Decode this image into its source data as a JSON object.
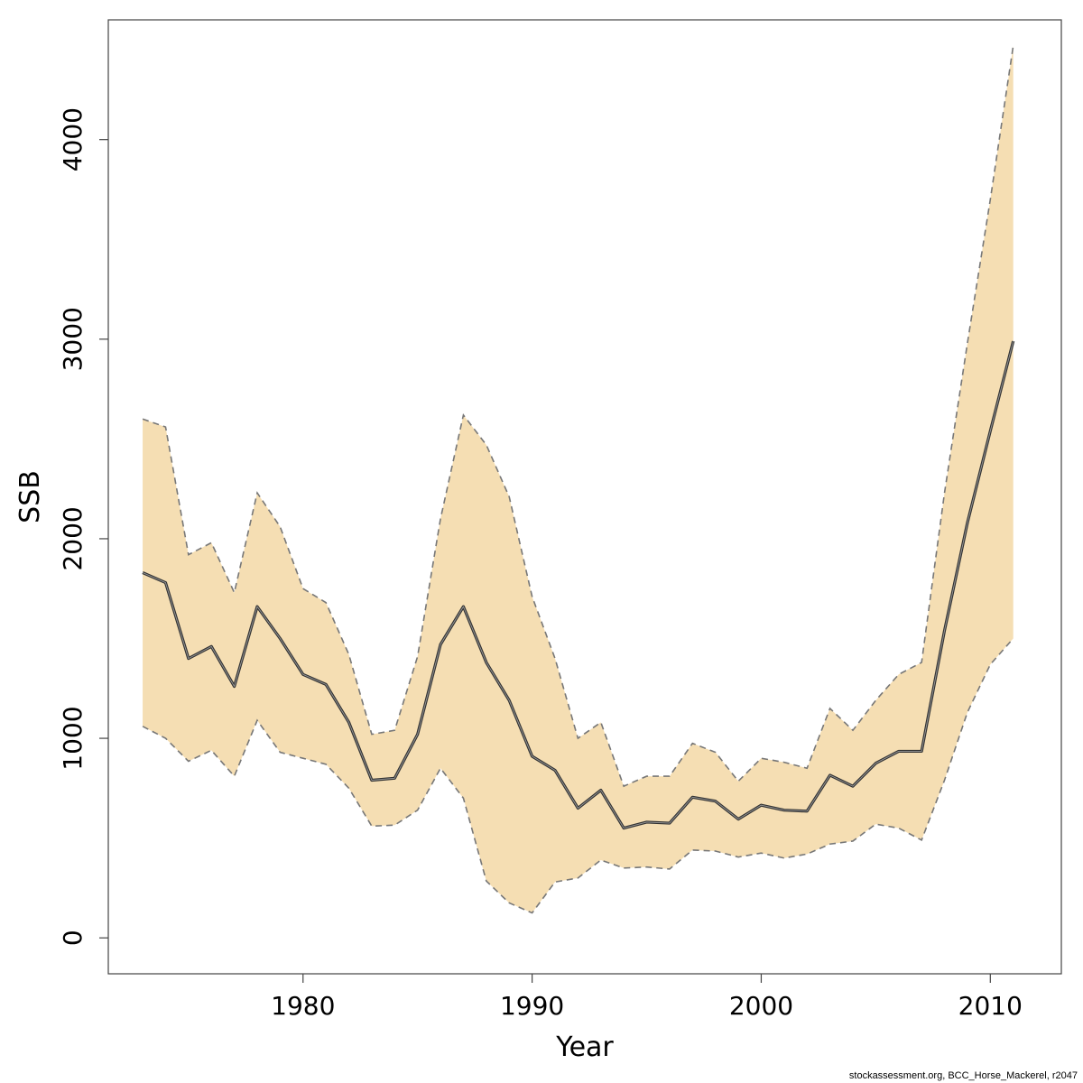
{
  "chart_data": {
    "type": "area",
    "title": "",
    "xlabel": "Year",
    "ylabel": "SSB",
    "xlim": [
      1971.5,
      2013.1
    ],
    "ylim": [
      -180,
      4600
    ],
    "xticks": [
      1980,
      1990,
      2000,
      2010
    ],
    "yticks": [
      0,
      1000,
      2000,
      3000,
      4000
    ],
    "grid": false,
    "colors": {
      "band": "#f5deb3",
      "line": "#555555",
      "bound": "#777777",
      "axis": "#444444"
    },
    "x": [
      1973,
      1974,
      1975,
      1976,
      1977,
      1978,
      1979,
      1980,
      1981,
      1982,
      1983,
      1984,
      1985,
      1986,
      1987,
      1988,
      1989,
      1990,
      1991,
      1992,
      1993,
      1994,
      1995,
      1996,
      1997,
      1998,
      1999,
      2000,
      2001,
      2002,
      2003,
      2004,
      2005,
      2006,
      2007,
      2008,
      2009,
      2010,
      2011
    ],
    "series": [
      {
        "role": "estimate",
        "values": [
          1830,
          1780,
          1400,
          1460,
          1260,
          1660,
          1500,
          1320,
          1270,
          1080,
          790,
          800,
          1020,
          1470,
          1660,
          1380,
          1190,
          910,
          840,
          650,
          740,
          550,
          580,
          575,
          705,
          685,
          595,
          665,
          640,
          635,
          815,
          760,
          875,
          935,
          935,
          1540,
          2080,
          2540,
          2990
        ]
      },
      {
        "role": "upper",
        "values": [
          2600,
          2560,
          1920,
          1980,
          1730,
          2230,
          2060,
          1750,
          1680,
          1420,
          1020,
          1040,
          1410,
          2100,
          2620,
          2470,
          2210,
          1710,
          1400,
          1000,
          1080,
          760,
          810,
          810,
          975,
          930,
          785,
          900,
          880,
          850,
          1150,
          1040,
          1190,
          1320,
          1380,
          2230,
          2980,
          3700,
          4470
        ]
      },
      {
        "role": "lower",
        "values": [
          1060,
          1000,
          885,
          940,
          810,
          1090,
          930,
          900,
          870,
          750,
          560,
          565,
          640,
          850,
          700,
          285,
          175,
          125,
          280,
          300,
          390,
          350,
          355,
          345,
          440,
          435,
          405,
          425,
          400,
          420,
          470,
          485,
          570,
          550,
          490,
          790,
          1130,
          1370,
          1500
        ]
      }
    ]
  },
  "credit": "stockassessment.org, BCC_Horse_Mackerel, r2047"
}
